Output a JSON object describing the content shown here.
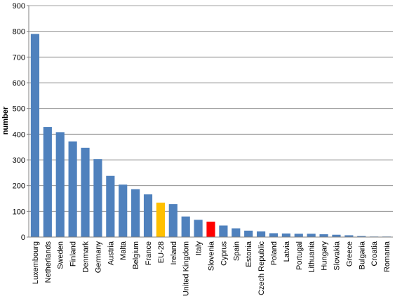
{
  "chart_data": {
    "type": "bar",
    "ylabel": "number",
    "xlabel": "",
    "ylim": [
      0,
      900
    ],
    "yticks": [
      0,
      100,
      200,
      300,
      400,
      500,
      600,
      700,
      800,
      900
    ],
    "grid": true,
    "legend": "none",
    "categories": [
      "Luxembourg",
      "Netherlands",
      "Sweden",
      "Finland",
      "Denmark",
      "Germany",
      "Austria",
      "Malta",
      "Belgium",
      "France",
      "EU-28",
      "Ireland",
      "United Kingdom",
      "Italy",
      "Slovenia",
      "Cyprus",
      "Spain",
      "Estonia",
      "Czech Republic",
      "Poland",
      "Latvia",
      "Portugal",
      "Lithuania",
      "Hungary",
      "Slovakia",
      "Greece",
      "Bulgaria",
      "Croatia",
      "Romania"
    ],
    "values": [
      790,
      428,
      408,
      372,
      347,
      303,
      238,
      204,
      186,
      166,
      134,
      128,
      80,
      67,
      60,
      45,
      34,
      25,
      22,
      15,
      14,
      13,
      13,
      11,
      9,
      7,
      4,
      2,
      2
    ],
    "colors": {
      "default": "#4F81BD",
      "EU-28": "#FFC000",
      "Slovenia": "#FF0000"
    }
  }
}
